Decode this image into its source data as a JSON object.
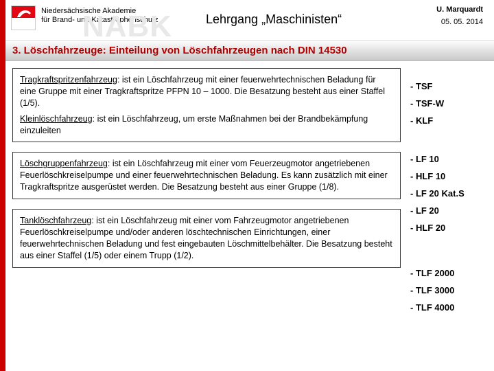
{
  "colors": {
    "accent_red": "#c00",
    "section_text": "#b00000",
    "watermark": "#e8e8e8",
    "box_border": "#333333"
  },
  "header": {
    "org_line1": "Niedersächsische Akademie",
    "org_line2": "für Brand- und Katastrophenschutz",
    "watermark": "NABK",
    "course_title": "Lehrgang „Maschinisten“",
    "author": "U. Marquardt",
    "date": "05. 05. 2014"
  },
  "section": {
    "title": "3. Löschfahrzeuge: Einteilung von Löschfahrzeugen nach DIN 14530"
  },
  "boxes": [
    {
      "paragraphs": [
        {
          "term": "Tragkraftspritzenfahrzeug",
          "rest": ": ist ein Löschfahrzeug mit einer feuerwehrtechnischen Beladung für eine Gruppe mit einer Tragkraftspritze PFPN 10 – 1000. Die Besatzung besteht aus einer Staffel (1/5)."
        },
        {
          "term": "Kleinlöschfahrzeug",
          "rest": ": ist ein Löschfahrzeug, um erste Maßnahmen bei der Brandbekämpfung einzuleiten"
        }
      ],
      "bullets": [
        "- TSF",
        "- TSF-W",
        "- KLF"
      ],
      "group_height": 102
    },
    {
      "paragraphs": [
        {
          "term": "Löschgruppenfahrzeug",
          "rest": ": ist ein Löschfahrzeug mit einer vom Feuerzeugmotor angetriebenen Feuerlöschkreiselpumpe und einer feuerwehrtechnischen Beladung. Es kann zusätzlich mit einer Tragkraftspritze ausgerüstet werden. Die Besatzung besteht aus einer Gruppe (1/8)."
        }
      ],
      "bullets": [
        "- LF 10",
        "- HLF 10",
        "- LF 20 Kat.S",
        "- LF 20",
        "- HLF 20"
      ],
      "group_height": 132
    },
    {
      "paragraphs": [
        {
          "term": "Tanklöschfahrzeug",
          "rest": ": ist ein Löschfahrzeug mit einer vom Fahrzeugmotor angetriebenen Feuerlöschkreiselpumpe und/oder anderen löschtechnischen Einrichtungen, einer feuerwehrtechnischen Beladung und fest eingebauten Löschmittelbehälter. Die Besatzung besteht aus einer Staffel (1/5) oder einem Trupp (1/2)."
        }
      ],
      "bullets": [
        "- TLF 2000",
        "- TLF 3000",
        "- TLF 4000"
      ],
      "group_height": 122
    }
  ]
}
